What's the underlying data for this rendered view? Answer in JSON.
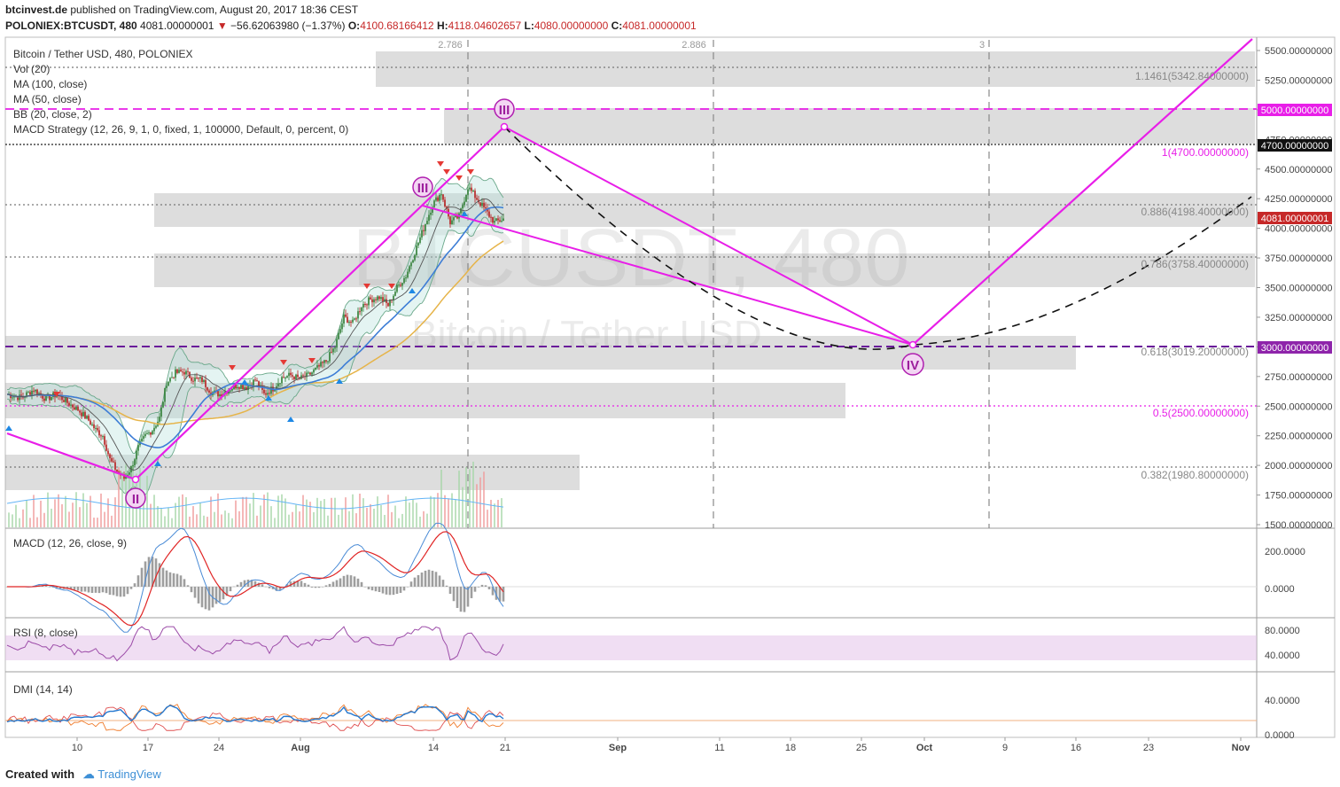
{
  "header": {
    "site": "btcinvest.de",
    "published": "published on TradingView.com, August 20, 2017 18:36 CEST",
    "symbol": "POLONIEX:BTCUSDT, 480",
    "price": "4081.00000001",
    "change_arrow": "▼",
    "change": "−56.62063980 (−1.37%)",
    "ohlc": {
      "o_label": "O:",
      "o": "4100.68166412",
      "h_label": "H:",
      "h": "4118.04602657",
      "l_label": "L:",
      "l": "4080.00000000",
      "c_label": "C:",
      "c": "4081.00000001"
    }
  },
  "legend": [
    "Bitcoin / Tether USD, 480, POLONIEX",
    "Vol (20)",
    "MA (100, close)",
    "MA (50, close)",
    "BB (20, close, 2)",
    "MACD Strategy (12, 26, 9, 1, 0, fixed, 1, 100000, Default, 0, percent, 0)"
  ],
  "watermark": {
    "symbol": "BTCUSDT, 480",
    "name": "Bitcoin / Tether USD"
  },
  "footer": {
    "created": "Created with",
    "brand": "TradingView"
  },
  "colors": {
    "magenta": "#e81ee8",
    "up": "#2e7d32",
    "down": "#b71c1c",
    "ma100": "#e6b449",
    "ma50": "#3d7dd6",
    "bb": "#6aa88a",
    "macd": "#e02424",
    "signal": "#4a8bd6",
    "rsi": "#9c4ca8",
    "dmi_plus": "#f07c2c",
    "dmi_minus": "#e05050",
    "adx": "#2478d0",
    "price_label_bg": "#c62828"
  },
  "chart_data": [
    {
      "type": "candlestick",
      "title": "Bitcoin / Tether USD, 480, POLONIEX",
      "x_ticks": [
        "10",
        "17",
        "24",
        "Aug",
        "14",
        "21",
        "Sep",
        "11",
        "18",
        "25",
        "Oct",
        "9",
        "16",
        "23",
        "Nov"
      ],
      "y_ticks": [
        "1500.00000000",
        "1750.00000000",
        "2000.00000000",
        "2250.00000000",
        "2500.00000000",
        "2750.00000000",
        "3000.00000000",
        "3250.00000000",
        "3500.00000000",
        "3750.00000000",
        "4000.00000000",
        "4250.00000000",
        "4500.00000000",
        "4750.00000000",
        "5000.00000000",
        "5250.00000000",
        "5500.00000000"
      ],
      "ylim": [
        1500,
        5580
      ],
      "current_price_label": "4081.00000001",
      "level_labels": {
        "l5000": "5000.00000000",
        "l4700": "4700.00000000",
        "l3000": "3000.00000000"
      },
      "fib_levels": [
        {
          "label": "1.1461(5342.84000000)",
          "price": 5342.84
        },
        {
          "label": "1(4700.00000000)",
          "price": 4700
        },
        {
          "label": "0.886(4198.40000000)",
          "price": 4198.4
        },
        {
          "label": "0.786(3758.40000000)",
          "price": 3758.4
        },
        {
          "label": "0.618(3019.20000000)",
          "price": 3019.2
        },
        {
          "label": "0.5(2500.00000000)",
          "price": 2500
        },
        {
          "label": "0.382(1980.80000000)",
          "price": 1980.8
        }
      ],
      "time_ratios": [
        "2.786",
        "2.886",
        "3"
      ],
      "wave_labels": [
        {
          "label": "II",
          "price": 1900
        },
        {
          "label": "III",
          "price": 4200
        },
        {
          "label": "III",
          "price": 5000
        },
        {
          "label": "IV",
          "price": 2950
        }
      ],
      "series": [
        {
          "name": "MA (100, close)",
          "values": [
            2500,
            2480,
            2400,
            2380,
            2400,
            2450,
            2500,
            2600,
            3000,
            3200
          ]
        },
        {
          "name": "MA (50, close)",
          "values": [
            2520,
            2400,
            2300,
            2350,
            2500,
            2600,
            2800,
            3200,
            3600,
            3750
          ]
        }
      ]
    },
    {
      "type": "bar",
      "title": "MACD (12, 26, close, 9)",
      "y_ticks": [
        "200.0000",
        "0.0000"
      ]
    },
    {
      "type": "line",
      "title": "RSI (8, close)",
      "y_ticks": [
        "80.0000",
        "40.0000"
      ]
    },
    {
      "type": "line",
      "title": "DMI (14, 14)",
      "y_ticks": [
        "40.0000",
        "0.0000"
      ]
    }
  ]
}
